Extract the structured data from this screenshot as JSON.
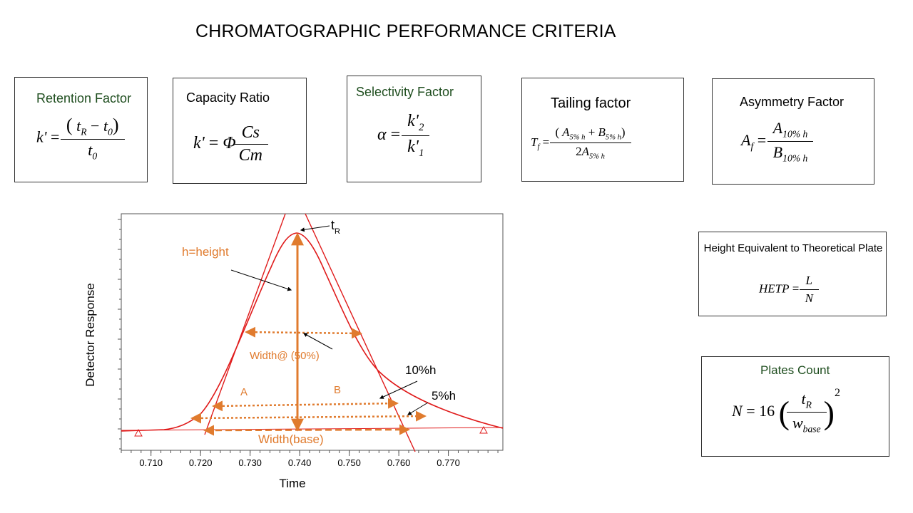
{
  "title": "CHROMATOGRAPHIC PERFORMANCE CRITERIA",
  "formulas": {
    "retention": {
      "title": "Retention Factor"
    },
    "capacity": {
      "title": "Capacity Ratio"
    },
    "selectivity": {
      "title": "Selectivity Factor"
    },
    "tailing": {
      "title": "Tailing factor"
    },
    "asymmetry": {
      "title": "Asymmetry Factor"
    },
    "hetp": {
      "title": "Height Equivalent to Theoretical Plate"
    },
    "plates": {
      "title": "Plates Count"
    }
  },
  "colors": {
    "curve": "#e01b1b",
    "annotation": "#e07b2e",
    "box_title_green": "#1f4e1f"
  },
  "diagram": {
    "xlabel": "Time",
    "ylabel": "Detector Response",
    "x_ticks": [
      "0.710",
      "0.720",
      "0.730",
      "0.740",
      "0.750",
      "0.760",
      "0.770"
    ],
    "x_range": [
      0.704,
      0.781
    ],
    "peak_time": 0.738,
    "labels": {
      "tR": "t",
      "tR_sub": "R",
      "height": "h=height",
      "width50": "Width@ (50%)",
      "width_base": "Width(base)",
      "A": "A",
      "B": "B",
      "ten_pct": "10%h",
      "five_pct": "5%h"
    },
    "markers": [
      "start-triangle",
      "end-triangle"
    ]
  }
}
